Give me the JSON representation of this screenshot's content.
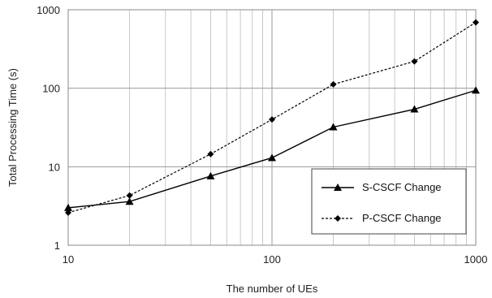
{
  "chart_data": {
    "type": "line",
    "xscale": "log",
    "yscale": "log",
    "xlim": [
      10,
      1000
    ],
    "ylim": [
      1,
      1000
    ],
    "xlabel": "The number of UEs",
    "ylabel": "Total Processing Time (s)",
    "x_ticks": [
      "10",
      "100",
      "1000"
    ],
    "y_ticks": [
      "1",
      "10",
      "100",
      "1000"
    ],
    "grid": true,
    "legend_position": "lower-right",
    "x": [
      10,
      20,
      50,
      100,
      200,
      500,
      1000
    ],
    "series": [
      {
        "name": "S-CSCF Change",
        "values": [
          3.0,
          3.6,
          7.6,
          13,
          32,
          54,
          94
        ],
        "line_style": "solid",
        "marker": "triangle",
        "color": "#000000"
      },
      {
        "name": "P-CSCF Change",
        "values": [
          2.6,
          4.3,
          14.5,
          40,
          112,
          220,
          690
        ],
        "line_style": "dashed",
        "marker": "diamond",
        "color": "#000000"
      }
    ]
  }
}
